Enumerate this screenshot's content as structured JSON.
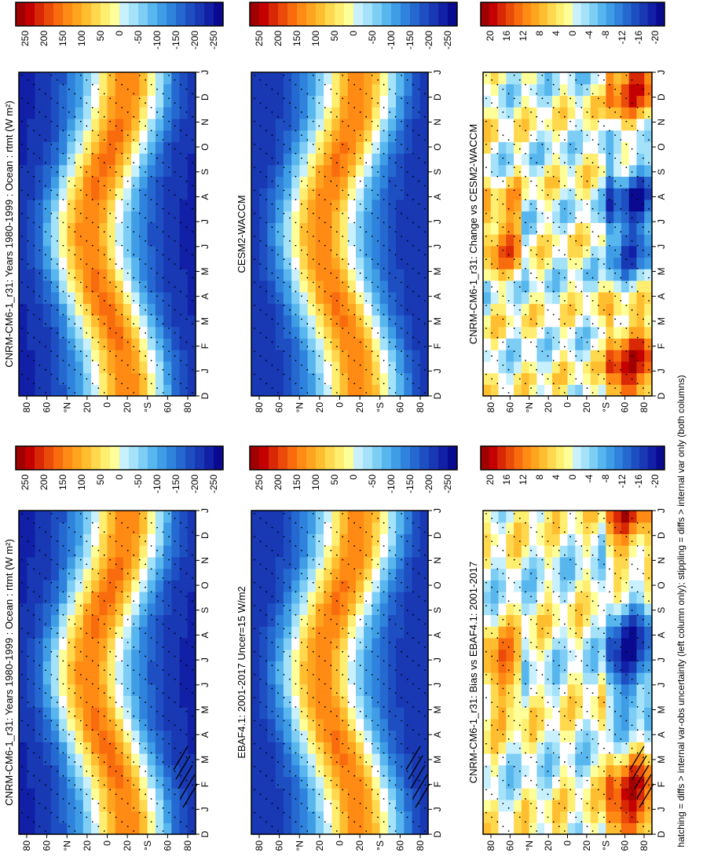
{
  "footnote": "hatching = diffs > internal var-obs uncertainty (left column only); stippling = diffs > internal var only (both columns)",
  "months_axis": [
    "D",
    "J",
    "F",
    "M",
    "A",
    "M",
    "J",
    "J",
    "A",
    "S",
    "O",
    "N",
    "D",
    "J"
  ],
  "lat_axis": [
    "80",
    "60",
    "°N",
    "20",
    "0",
    "20",
    "°S",
    "60",
    "80"
  ],
  "colors": {
    "warm": [
      "#ffffff",
      "#ffff99",
      "#ffee70",
      "#ffd84e",
      "#ffbe30",
      "#ffa41f",
      "#ff8a14",
      "#f86c0e",
      "#ea4a0a",
      "#d92805",
      "#c40000",
      "#a00000"
    ],
    "cool": [
      "#ffffff",
      "#c8f0ff",
      "#a4e2fa",
      "#7dcdf5",
      "#58b6ee",
      "#3f9de6",
      "#2f83dc",
      "#2569d0",
      "#1e4fc2",
      "#1838b4",
      "#1220a8",
      "#0a0a90"
    ]
  },
  "chart_data": [
    {
      "type": "heatmap",
      "title": "CNRM-CM6-1_r31: Years 1980-1999 : Ocean : rtmt (W m²)",
      "colorbar_labels": [
        "250",
        "200",
        "150",
        "100",
        "50",
        "0",
        "-50",
        "-100",
        "-150",
        "-200",
        "-250"
      ],
      "range": [
        -275,
        275
      ],
      "hatched": true
    },
    {
      "type": "heatmap",
      "title": "EBAF4.1: 2001-2017 Uncer=15 W/m2",
      "colorbar_labels": [
        "250",
        "200",
        "150",
        "100",
        "50",
        "0",
        "-50",
        "-100",
        "-150",
        "-200",
        "-250"
      ],
      "range": [
        -275,
        275
      ],
      "hatched": true
    },
    {
      "type": "heatmap",
      "title": "CNRM-CM6-1_r31: Bias vs EBAF4.1: 2001-2017",
      "colorbar_labels": [
        "20",
        "16",
        "12",
        "8",
        "4",
        "0",
        "-4",
        "-8",
        "-12",
        "-16",
        "-20"
      ],
      "range": [
        -22,
        22
      ],
      "hatched": true
    },
    {
      "type": "heatmap",
      "title": "CNRM-CM6-1_r31: Years 1980-1999 : Ocean : rtmt (W m²)",
      "colorbar_labels": [
        "250",
        "200",
        "150",
        "100",
        "50",
        "0",
        "-50",
        "-100",
        "-150",
        "-200",
        "-250"
      ],
      "range": [
        -275,
        275
      ],
      "hatched": false
    },
    {
      "type": "heatmap",
      "title": "CESM2-WACCM",
      "colorbar_labels": [
        "250",
        "200",
        "150",
        "100",
        "50",
        "0",
        "-50",
        "-100",
        "-150",
        "-200",
        "-250"
      ],
      "range": [
        -275,
        275
      ],
      "hatched": false
    },
    {
      "type": "heatmap",
      "title": "CNRM-CM6-1_r31: Change vs CESM2-WACCM",
      "colorbar_labels": [
        "20",
        "16",
        "12",
        "8",
        "4",
        "0",
        "-4",
        "-8",
        "-12",
        "-16",
        "-20"
      ],
      "range": [
        -22,
        22
      ],
      "hatched": false
    }
  ]
}
